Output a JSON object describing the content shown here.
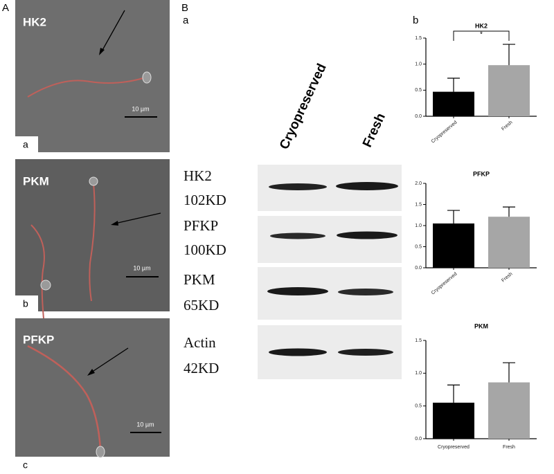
{
  "panel_A": {
    "label": "A",
    "images": [
      {
        "title": "HK2",
        "sub": "a",
        "scale": "10 µm"
      },
      {
        "title": "PKM",
        "sub": "b",
        "scale": "10 µm"
      },
      {
        "title": "PFKP",
        "sub": "c",
        "scale": "10 µm"
      }
    ]
  },
  "panel_B": {
    "label": "B",
    "sub_a": "a",
    "sub_b": "b",
    "blot": {
      "columns": [
        "Cryopreserved",
        "Fresh"
      ],
      "rows": [
        {
          "protein": "HK2",
          "size": "102KD"
        },
        {
          "protein": "PFKP",
          "size": "100KD"
        },
        {
          "protein": "PKM",
          "size": "65KD"
        },
        {
          "protein": "Actin",
          "size": "42KD"
        }
      ]
    }
  },
  "chart_data": [
    {
      "type": "bar",
      "title": "HK2",
      "categories": [
        "Cryopreserved",
        "Fresh"
      ],
      "values": [
        0.47,
        0.98
      ],
      "errors": [
        0.26,
        0.4
      ],
      "colors": [
        "#000000",
        "#a6a6a6"
      ],
      "ylim": [
        0,
        1.5
      ],
      "yticks": [
        {
          "value": 0,
          "label": "0.0"
        },
        0.5,
        {
          "value": 1,
          "label": "1.0"
        },
        1.5
      ],
      "annotation": "*"
    },
    {
      "type": "bar",
      "title": "PFKP",
      "categories": [
        "Cryopreserved",
        "Fresh"
      ],
      "values": [
        1.05,
        1.21
      ],
      "errors": [
        0.31,
        0.23
      ],
      "colors": [
        "#000000",
        "#a6a6a6"
      ],
      "ylim": [
        0,
        2
      ],
      "yticks": [
        {
          "value": 0,
          "label": "0.0"
        },
        0.5,
        {
          "value": 1,
          "label": "1.0"
        },
        1.5,
        {
          "value": 2,
          "label": "2.0"
        }
      ]
    },
    {
      "type": "bar",
      "title": "PKM",
      "categories": [
        "Cryopreserved",
        "Fresh"
      ],
      "values": [
        0.55,
        0.86
      ],
      "errors": [
        0.27,
        0.3
      ],
      "colors": [
        "#000000",
        "#a6a6a6"
      ],
      "ylim": [
        0,
        1.5
      ],
      "yticks": [
        {
          "value": 0,
          "label": "0.0"
        },
        0.5,
        {
          "value": 1,
          "label": "1.0"
        },
        1.5
      ]
    }
  ]
}
